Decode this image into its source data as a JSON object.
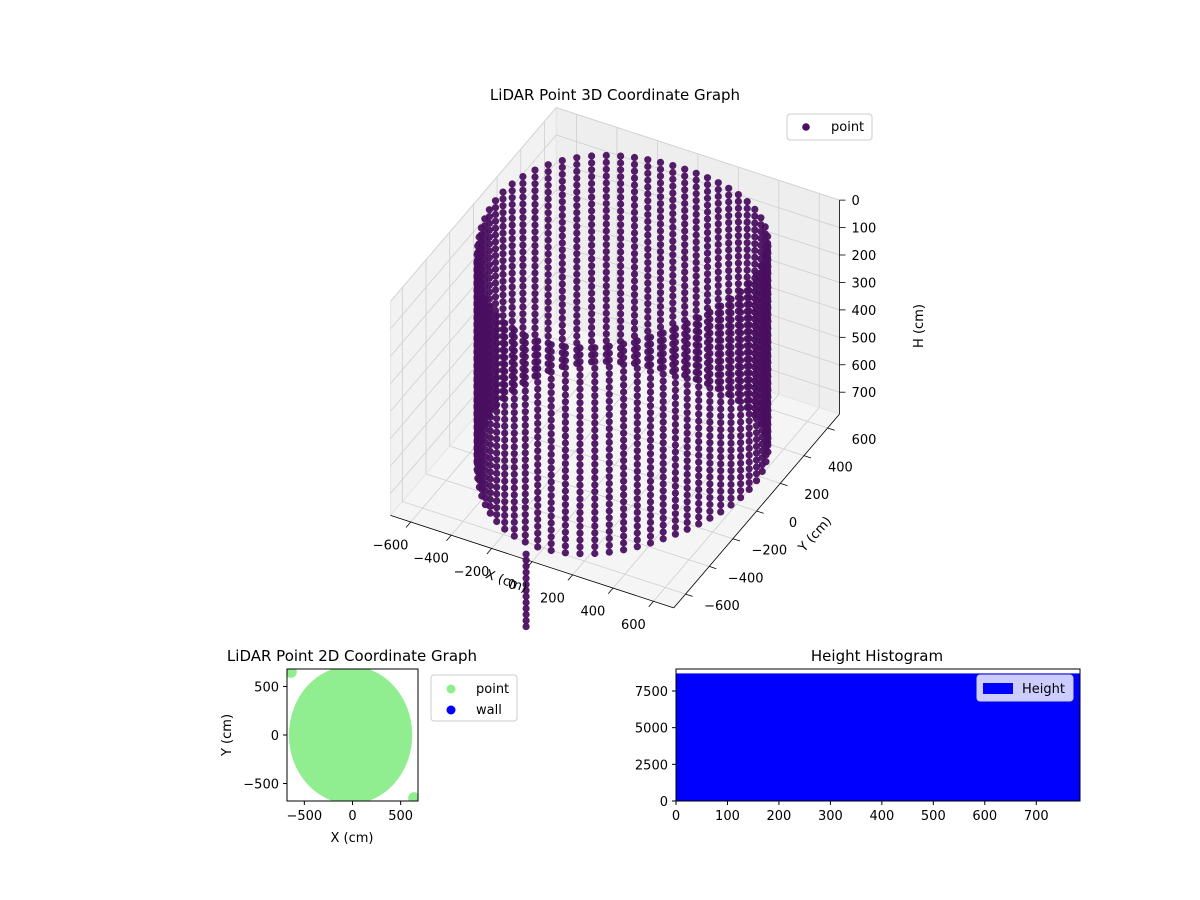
{
  "chart_data": [
    {
      "type": "scatter3d",
      "title": "LiDAR Point 3D Coordinate Graph",
      "xlabel": "X (cm)",
      "ylabel": "Y (cm)",
      "zlabel": "H (cm)",
      "xlim": [
        -700,
        700
      ],
      "ylim": [
        -700,
        700
      ],
      "zlim": [
        0,
        780
      ],
      "z_inverted": true,
      "xticks": [
        "−600",
        "−400",
        "−200",
        "0",
        "200",
        "400",
        "600"
      ],
      "yticks": [
        "−600",
        "−400",
        "−200",
        "0",
        "200",
        "400",
        "600"
      ],
      "zticks": [
        "0",
        "100",
        "200",
        "300",
        "400",
        "500",
        "600",
        "700"
      ],
      "legend": {
        "entries": [
          "point"
        ],
        "placement": "top-right"
      },
      "grid": true,
      "colors": {
        "point": "#4a0f60"
      },
      "series": [
        {
          "name": "point",
          "shape": "sampled vertical wall around a roughly circular room",
          "ring_radius_cm": 640,
          "wall_height_cm": [
            0,
            760
          ],
          "sample_points": [
            {
              "x": -450,
              "y": 420,
              "h": 0
            },
            {
              "x": 0,
              "y": 600,
              "h": 0
            },
            {
              "x": 450,
              "y": 430,
              "h": 0
            },
            {
              "x": 620,
              "y": 0,
              "h": 0
            },
            {
              "x": 430,
              "y": -450,
              "h": 0
            },
            {
              "x": -640,
              "y": 0,
              "h": 50
            },
            {
              "x": -620,
              "y": -150,
              "h": 700
            },
            {
              "x": 0,
              "y": -640,
              "h": 760
            },
            {
              "x": 300,
              "y": -560,
              "h": 760
            },
            {
              "x": 520,
              "y": -380,
              "h": 700
            }
          ]
        }
      ]
    },
    {
      "type": "scatter",
      "title": "LiDAR Point 2D Coordinate Graph",
      "xlabel": "X (cm)",
      "ylabel": "Y (cm)",
      "xlim": [
        -680,
        680
      ],
      "ylim": [
        -680,
        680
      ],
      "xticks": [
        "−500",
        "0",
        "500"
      ],
      "yticks": [
        "−500",
        "0",
        "500"
      ],
      "legend": {
        "entries": [
          "point",
          "wall"
        ],
        "placement": "outside-right"
      },
      "colors": {
        "point": "#90ee90",
        "wall": "#0000ff"
      },
      "series": [
        {
          "name": "point",
          "shape": "filled ellipse",
          "center": [
            -20,
            0
          ],
          "radius_x_cm": 640,
          "radius_y_cm": 710,
          "corner_fragments": [
            [
              -640,
              650
            ],
            [
              640,
              -650
            ]
          ]
        },
        {
          "name": "wall",
          "values": []
        }
      ]
    },
    {
      "type": "bar",
      "title": "Height Histogram",
      "xlim": [
        0,
        785
      ],
      "ylim": [
        0,
        9000
      ],
      "xticks": [
        "0",
        "100",
        "200",
        "300",
        "400",
        "500",
        "600",
        "700"
      ],
      "yticks": [
        "0",
        "2500",
        "5000",
        "7500"
      ],
      "legend": {
        "entries": [
          "Height"
        ],
        "placement": "top-right"
      },
      "colors": {
        "Height": "#0000ff"
      },
      "series": [
        {
          "name": "Height",
          "bins": [
            [
              0,
              785
            ]
          ],
          "values": [
            8700
          ]
        }
      ]
    }
  ]
}
